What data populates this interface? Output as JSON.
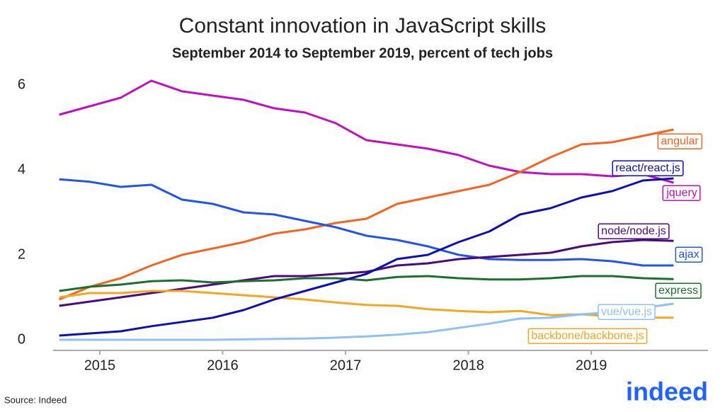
{
  "chart_data": {
    "type": "line",
    "title": "Constant innovation in JavaScript skills",
    "subtitle": "September 2014 to September 2019, percent of tech jobs",
    "source": "Source: Indeed",
    "logo": "indeed",
    "x": [
      2014.67,
      2014.92,
      2015.17,
      2015.42,
      2015.67,
      2015.92,
      2016.17,
      2016.42,
      2016.67,
      2016.92,
      2017.17,
      2017.42,
      2017.67,
      2017.92,
      2018.17,
      2018.42,
      2018.67,
      2018.92,
      2019.17,
      2019.42,
      2019.67
    ],
    "xlim": [
      2014.62,
      2019.95
    ],
    "xticks": [
      2015,
      2016,
      2017,
      2018,
      2019
    ],
    "ylim": [
      -0.25,
      6.5
    ],
    "yticks": [
      0,
      2,
      4,
      6
    ],
    "grid": false,
    "series": [
      {
        "name": "jquery",
        "color": "#c010c0",
        "values": [
          5.3,
          5.5,
          5.7,
          6.1,
          5.85,
          5.75,
          5.65,
          5.45,
          5.35,
          5.1,
          4.7,
          4.6,
          4.5,
          4.35,
          4.1,
          3.95,
          3.9,
          3.9,
          3.85,
          3.9,
          3.7
        ]
      },
      {
        "name": "angular",
        "color": "#f26522",
        "values": [
          0.95,
          1.25,
          1.45,
          1.75,
          2.0,
          2.15,
          2.3,
          2.5,
          2.6,
          2.75,
          2.85,
          3.2,
          3.35,
          3.5,
          3.65,
          3.95,
          4.3,
          4.6,
          4.65,
          4.8,
          4.95
        ]
      },
      {
        "name": "ajax",
        "color": "#2255e8",
        "values": [
          3.78,
          3.72,
          3.6,
          3.65,
          3.3,
          3.2,
          3.0,
          2.95,
          2.8,
          2.65,
          2.45,
          2.35,
          2.2,
          2.0,
          1.9,
          1.88,
          1.88,
          1.9,
          1.85,
          1.75,
          1.75
        ]
      },
      {
        "name": "node/node.js",
        "color": "#4b0a82",
        "values": [
          0.8,
          0.9,
          1.0,
          1.1,
          1.2,
          1.3,
          1.4,
          1.5,
          1.5,
          1.55,
          1.6,
          1.75,
          1.8,
          1.9,
          1.95,
          2.0,
          2.05,
          2.2,
          2.3,
          2.35,
          2.33
        ]
      },
      {
        "name": "express",
        "color": "#1e6e2e",
        "values": [
          1.15,
          1.25,
          1.3,
          1.38,
          1.4,
          1.35,
          1.38,
          1.4,
          1.45,
          1.45,
          1.4,
          1.48,
          1.5,
          1.45,
          1.42,
          1.42,
          1.45,
          1.5,
          1.5,
          1.45,
          1.43
        ]
      },
      {
        "name": "backbone/backbone.js",
        "color": "#f5a623",
        "values": [
          1.0,
          1.1,
          1.1,
          1.15,
          1.15,
          1.1,
          1.05,
          1.0,
          0.95,
          0.88,
          0.82,
          0.8,
          0.72,
          0.68,
          0.65,
          0.68,
          0.58,
          0.6,
          0.55,
          0.52,
          0.52
        ]
      },
      {
        "name": "vue/vue.js",
        "color": "#90c0f8",
        "values": [
          0,
          0,
          0,
          0,
          0,
          0,
          0.01,
          0.02,
          0.03,
          0.05,
          0.08,
          0.12,
          0.18,
          0.28,
          0.38,
          0.5,
          0.52,
          0.6,
          0.65,
          0.75,
          0.85
        ]
      },
      {
        "name": "react/react.js",
        "color": "#1010b0",
        "values": [
          0.1,
          0.15,
          0.2,
          0.32,
          0.42,
          0.52,
          0.7,
          0.95,
          1.15,
          1.35,
          1.55,
          1.9,
          2.0,
          2.3,
          2.55,
          2.95,
          3.1,
          3.35,
          3.5,
          3.75,
          3.8
        ]
      }
    ]
  }
}
